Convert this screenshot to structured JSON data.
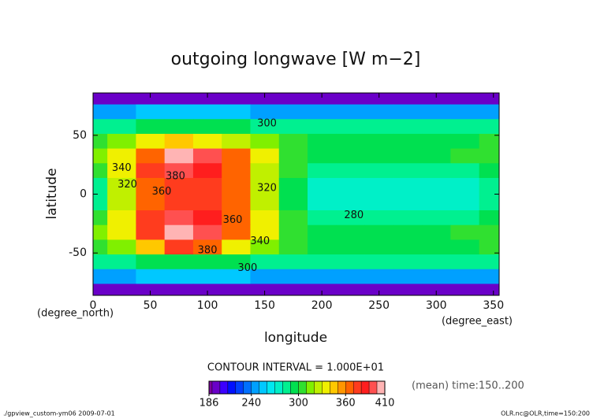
{
  "chart_data": {
    "type": "contour",
    "title": "outgoing longwave [W m−2]",
    "x_label": "longitude",
    "y_label": "latitude",
    "x_unit": "(degree_east)",
    "y_unit": "(degree_north)",
    "xlim": [
      0,
      355
    ],
    "ylim": [
      -86,
      86
    ],
    "xticks": [
      0,
      50,
      100,
      150,
      200,
      250,
      300,
      350
    ],
    "yticks": [
      -50,
      0,
      50
    ],
    "lon": [
      0,
      25,
      50,
      75,
      100,
      125,
      150,
      175,
      200,
      225,
      250,
      275,
      300,
      325,
      350
    ],
    "lat": [
      82.5,
      70,
      57.5,
      45,
      32.5,
      20,
      7.5,
      -7.5,
      -20,
      -32.5,
      -45,
      -57.5,
      -70,
      -82.5
    ],
    "z": [
      [
        195,
        195,
        195,
        195,
        195,
        195,
        195,
        195,
        195,
        195,
        195,
        195,
        195,
        195,
        195
      ],
      [
        240,
        245,
        250,
        250,
        250,
        250,
        245,
        240,
        240,
        240,
        240,
        240,
        240,
        240,
        240
      ],
      [
        280,
        285,
        290,
        290,
        290,
        290,
        285,
        280,
        280,
        280,
        280,
        280,
        280,
        280,
        280
      ],
      [
        300,
        310,
        330,
        340,
        330,
        320,
        310,
        300,
        295,
        295,
        295,
        295,
        295,
        295,
        300
      ],
      [
        310,
        330,
        360,
        400,
        390,
        360,
        330,
        305,
        295,
        295,
        295,
        295,
        295,
        300,
        305
      ],
      [
        300,
        330,
        370,
        390,
        380,
        360,
        320,
        300,
        285,
        280,
        280,
        280,
        280,
        285,
        295
      ],
      [
        280,
        320,
        360,
        370,
        370,
        360,
        320,
        290,
        275,
        270,
        270,
        270,
        270,
        275,
        285
      ],
      [
        280,
        320,
        360,
        370,
        375,
        360,
        320,
        290,
        275,
        270,
        270,
        270,
        270,
        275,
        285
      ],
      [
        300,
        330,
        370,
        390,
        385,
        360,
        330,
        300,
        285,
        280,
        280,
        280,
        280,
        285,
        295
      ],
      [
        310,
        330,
        370,
        400,
        390,
        360,
        330,
        305,
        295,
        290,
        295,
        295,
        295,
        300,
        305
      ],
      [
        300,
        310,
        340,
        370,
        360,
        330,
        310,
        300,
        295,
        295,
        295,
        295,
        295,
        295,
        300
      ],
      [
        285,
        285,
        290,
        295,
        295,
        290,
        285,
        280,
        280,
        280,
        280,
        280,
        280,
        280,
        280
      ],
      [
        245,
        245,
        250,
        250,
        250,
        250,
        245,
        240,
        240,
        240,
        240,
        240,
        240,
        240,
        240
      ],
      [
        195,
        195,
        195,
        195,
        195,
        195,
        195,
        195,
        195,
        195,
        195,
        195,
        195,
        195,
        195
      ]
    ],
    "levels": [
      186,
      190,
      200,
      210,
      220,
      230,
      240,
      250,
      260,
      270,
      280,
      290,
      300,
      310,
      320,
      330,
      340,
      350,
      360,
      370,
      380,
      390,
      400,
      410
    ],
    "colors": [
      "#7f00a0",
      "#6a00c8",
      "#3c00ff",
      "#0010ff",
      "#0040ff",
      "#0070ff",
      "#00a0ff",
      "#00c8ff",
      "#00e8f0",
      "#00f0c8",
      "#00f090",
      "#00e050",
      "#30e030",
      "#80f000",
      "#c0f000",
      "#f0f000",
      "#ffc800",
      "#ff9600",
      "#ff6400",
      "#ff3c1e",
      "#ff1e1e",
      "#ff5050",
      "#ffb4b4"
    ],
    "colorbar_ticks": [
      186,
      240,
      300,
      360,
      410
    ],
    "contour_labels": [
      {
        "value": 340,
        "x": 25,
        "y": 22
      },
      {
        "value": 320,
        "x": 30,
        "y": 8
      },
      {
        "value": 360,
        "x": 60,
        "y": 2
      },
      {
        "value": 380,
        "x": 72,
        "y": 15
      },
      {
        "value": 360,
        "x": 122,
        "y": -22
      },
      {
        "value": 320,
        "x": 152,
        "y": 5
      },
      {
        "value": 340,
        "x": 146,
        "y": -40
      },
      {
        "value": 380,
        "x": 100,
        "y": -48
      },
      {
        "value": 280,
        "x": 228,
        "y": -18
      },
      {
        "value": 300,
        "x": 152,
        "y": 60
      },
      {
        "value": 300,
        "x": 135,
        "y": -63
      }
    ],
    "contour_interval": "CONTOUR INTERVAL = 1.000E+01",
    "mean_label": "(mean) time:150..200",
    "footer_left": "./gpview_custom-ym06   2009-07-01",
    "footer_right": "OLR.nc@OLR,time=150:200"
  }
}
